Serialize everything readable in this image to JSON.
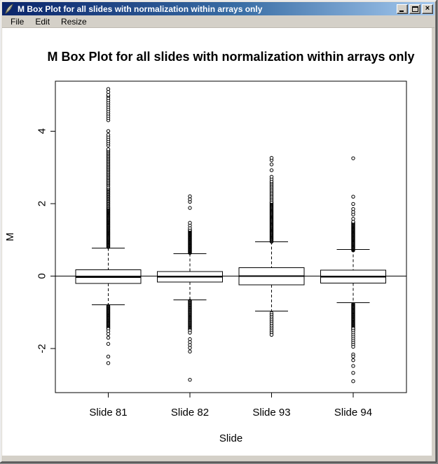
{
  "window": {
    "title": "M Box Plot for all slides with normalization within arrays only",
    "icon": "feather-icon",
    "controls": [
      "minimize",
      "maximize",
      "close"
    ],
    "close_glyph": "×"
  },
  "menu": {
    "items": [
      "File",
      "Edit",
      "Resize"
    ]
  },
  "chart_data": {
    "type": "boxplot",
    "title": "M Box Plot for all slides with normalization within arrays only",
    "xlabel": "Slide",
    "ylabel": "M",
    "ylim": [
      -3.2,
      5.4
    ],
    "yticks": [
      -2,
      0,
      2,
      4
    ],
    "grid": false,
    "reference_line_y": 0,
    "categories": [
      "Slide 81",
      "Slide 82",
      "Slide 93",
      "Slide 94"
    ],
    "series": [
      {
        "label": "Slide 81",
        "q1": -0.2,
        "median": -0.03,
        "q3": 0.17,
        "whisker_low": -0.79,
        "whisker_high": 0.77,
        "outliers_upper": {
          "clusters": [
            [
              0.8,
              1.9,
              60
            ],
            [
              1.93,
              2.45,
              20
            ],
            [
              2.5,
              3.5,
              30
            ],
            [
              3.6,
              3.9,
              6
            ],
            [
              4.3,
              4.97,
              12
            ]
          ],
          "points": [
            4.0,
            5.0,
            5.08,
            5.16
          ]
        },
        "outliers_lower": {
          "clusters": [
            [
              -0.82,
              -1.46,
              36
            ]
          ],
          "points": [
            -1.52,
            -1.6,
            -1.7,
            -1.87,
            -2.22,
            -2.4
          ]
        }
      },
      {
        "label": "Slide 82",
        "q1": -0.16,
        "median": -0.02,
        "q3": 0.13,
        "whisker_low": -0.66,
        "whisker_high": 0.62,
        "outliers_upper": {
          "clusters": [
            [
              0.64,
              1.28,
              40
            ]
          ],
          "points": [
            1.33,
            1.4,
            1.47,
            1.88,
            2.05,
            2.12,
            2.2
          ]
        },
        "outliers_lower": {
          "clusters": [
            [
              -0.68,
              -1.5,
              42
            ]
          ],
          "points": [
            -1.56,
            -1.74,
            -1.82,
            -1.9,
            -1.98,
            -2.08,
            -2.86
          ]
        }
      },
      {
        "label": "Slide 93",
        "q1": -0.24,
        "median": 0.0,
        "q3": 0.23,
        "whisker_low": -0.97,
        "whisker_high": 0.95,
        "outliers_upper": {
          "clusters": [
            [
              0.95,
              2.05,
              55
            ],
            [
              2.1,
              2.62,
              14
            ]
          ],
          "points": [
            2.68,
            2.74,
            2.92,
            3.08,
            3.2,
            3.26
          ]
        },
        "outliers_lower": {
          "clusters": [
            [
              -1.02,
              -1.62,
              13
            ]
          ],
          "points": []
        }
      },
      {
        "label": "Slide 94",
        "q1": -0.19,
        "median": -0.02,
        "q3": 0.16,
        "whisker_low": -0.73,
        "whisker_high": 0.73,
        "outliers_upper": {
          "clusters": [
            [
              0.71,
              1.5,
              45
            ]
          ],
          "points": [
            1.58,
            1.7,
            1.77,
            1.85,
            1.99,
            2.19,
            3.25
          ]
        },
        "outliers_lower": {
          "clusters": [
            [
              -0.77,
              -1.5,
              42
            ],
            [
              -1.45,
              -1.95,
              10
            ]
          ],
          "points": [
            -2.16,
            -2.22,
            -2.32,
            -2.48,
            -2.67,
            -2.9
          ]
        }
      }
    ]
  }
}
